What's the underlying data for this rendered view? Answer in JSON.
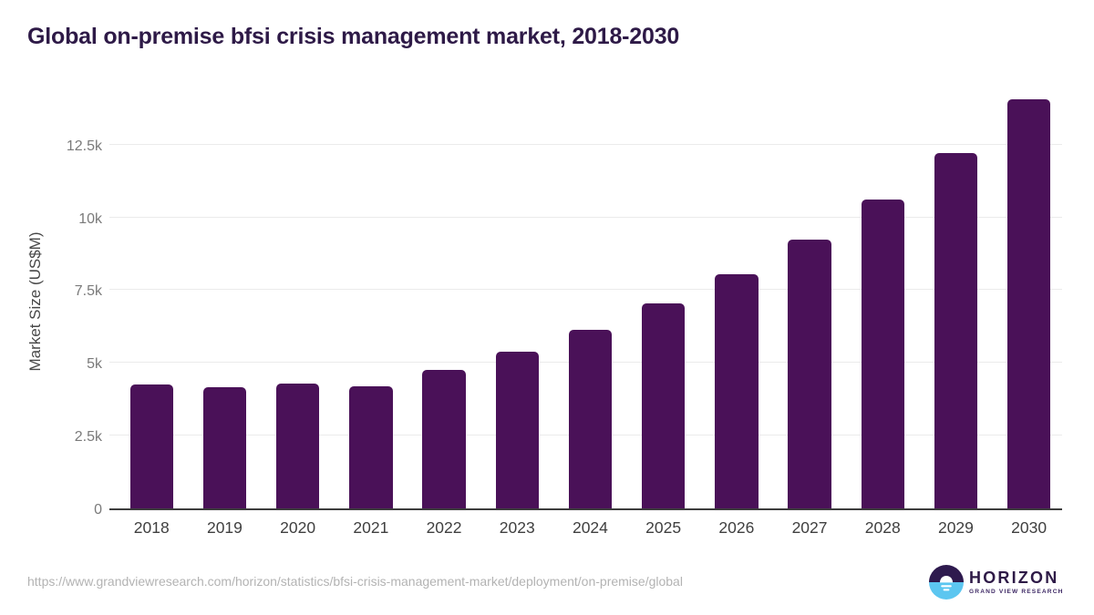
{
  "page": {
    "source_url": "https://www.grandviewresearch.com/horizon/statistics/bfsi-crisis-management-market/deployment/on-premise/global"
  },
  "logo": {
    "name": "HORIZON",
    "subtitle": "GRAND VIEW RESEARCH"
  },
  "colors": {
    "bar": "#4a1158",
    "title": "#2e1a47",
    "axis": "#3d3d3d",
    "grid": "#ebebeb",
    "ytick_text": "#7a7a7a",
    "xtick_text": "#3f3f3f",
    "url_text": "#b3b3b3",
    "logo_purple": "#2e1a4e",
    "logo_blue": "#5cc6f0",
    "logo_subtitle": "#3f2a66"
  },
  "chart_data": {
    "type": "bar",
    "title": "Global on-premise bfsi crisis management market, 2018-2030",
    "categories": [
      "2018",
      "2019",
      "2020",
      "2021",
      "2022",
      "2023",
      "2024",
      "2025",
      "2026",
      "2027",
      "2028",
      "2029",
      "2030"
    ],
    "values": [
      4250,
      4150,
      4300,
      4200,
      4750,
      5400,
      6150,
      7050,
      8050,
      9250,
      10600,
      12200,
      14050
    ],
    "xlabel": "",
    "ylabel": "Market Size (US$M)",
    "ylim": [
      0,
      14400
    ],
    "yticks": [
      {
        "value": 0,
        "label": "0"
      },
      {
        "value": 2500,
        "label": "2.5k"
      },
      {
        "value": 5000,
        "label": "5k"
      },
      {
        "value": 7500,
        "label": "7.5k"
      },
      {
        "value": 10000,
        "label": "10k"
      },
      {
        "value": 12500,
        "label": "12.5k"
      },
      {
        "value": 12500,
        "label": "12.5k"
      }
    ],
    "grid": "horizontal",
    "legend": "none"
  }
}
